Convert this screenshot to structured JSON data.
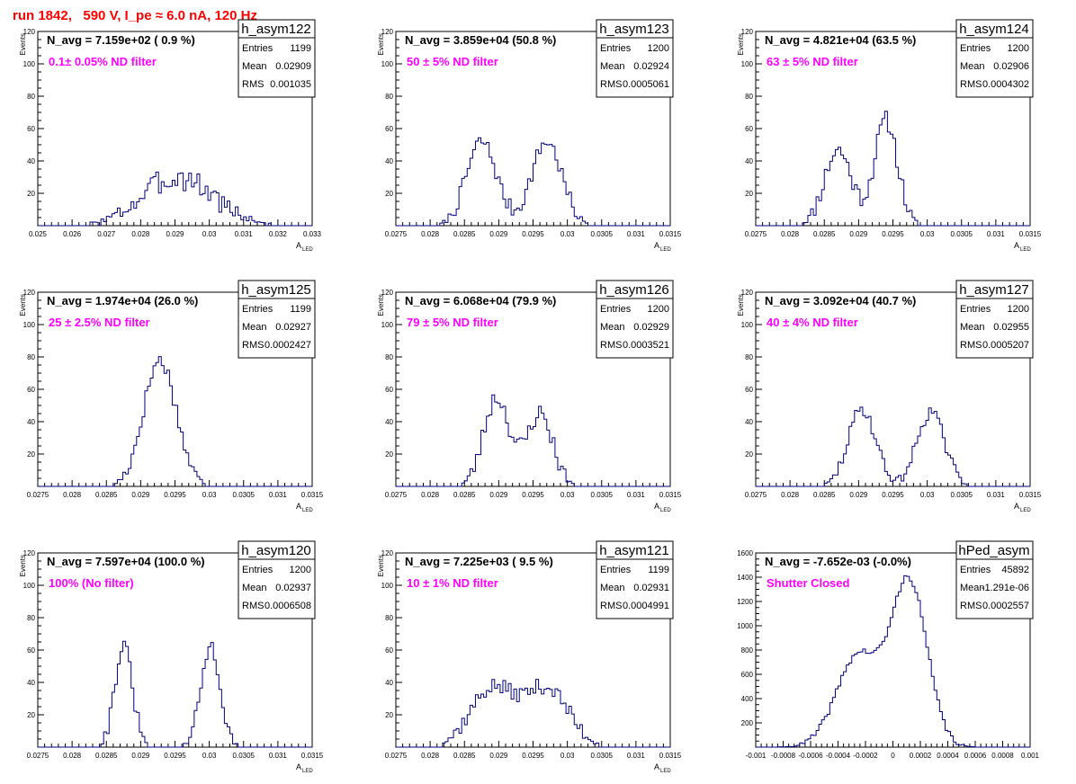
{
  "header": {
    "run_title": "run 1842,   590 V, I_pe ≈ 6.0 nA, 120 Hz",
    "title_color": "#ff0000"
  },
  "style": {
    "line_color": "#000080",
    "annotation_color": "#ff00ff"
  },
  "chart_data": [
    {
      "type": "histogram",
      "name": "h_asym122",
      "navg": "N_avg = 7.159e+02 ( 0.9 %)",
      "annotation": "0.1± 0.05% ND filter",
      "stats": {
        "entries_label": "Entries",
        "entries": "1199",
        "mean_label": "Mean",
        "mean": "0.02909",
        "rms_label": "RMS",
        "rms": "0.001035"
      },
      "xlabel_main": "A",
      "xlabel_sub": "LED",
      "ylabel": "Events",
      "xlim": [
        0.025,
        0.033
      ],
      "ylim": [
        0,
        120
      ],
      "xticks": [
        "0.025",
        "0.026",
        "0.027",
        "0.028",
        "0.029",
        "0.03",
        "0.031",
        "0.032",
        "0.033"
      ],
      "yticks": [
        "20",
        "40",
        "60",
        "80",
        "100",
        "120"
      ],
      "peaks": [
        [
          0.02909,
          0.00105,
          30
        ]
      ],
      "noise": 8,
      "seed": 3
    },
    {
      "type": "histogram",
      "name": "h_asym123",
      "navg": "N_avg = 3.859e+04 (50.8 %)",
      "annotation": "50 ± 5% ND filter",
      "stats": {
        "entries_label": "Entries",
        "entries": "1200",
        "mean_label": "Mean",
        "mean": "0.02924",
        "rms_label": "RMS",
        "rms": "0.0005061"
      },
      "xlabel_main": "A",
      "xlabel_sub": "LED",
      "ylabel": "Events",
      "xlim": [
        0.0275,
        0.0315
      ],
      "ylim": [
        0,
        120
      ],
      "xticks": [
        "0.0275",
        "0.028",
        "0.0285",
        "0.029",
        "0.0295",
        "0.03",
        "0.0305",
        "0.031",
        "0.0315"
      ],
      "yticks": [
        "20",
        "40",
        "60",
        "80",
        "100",
        "120"
      ],
      "peaks": [
        [
          0.02875,
          0.00022,
          52
        ],
        [
          0.0297,
          0.00022,
          52
        ]
      ],
      "noise": 5,
      "seed": 7
    },
    {
      "type": "histogram",
      "name": "h_asym124",
      "navg": "N_avg = 4.821e+04 (63.5 %)",
      "annotation": "63 ± 5% ND filter",
      "stats": {
        "entries_label": "Entries",
        "entries": "1200",
        "mean_label": "Mean",
        "mean": "0.02906",
        "rms_label": "RMS",
        "rms": "0.0004302"
      },
      "xlabel_main": "A",
      "xlabel_sub": "LED",
      "ylabel": "Events",
      "xlim": [
        0.0275,
        0.0315
      ],
      "ylim": [
        0,
        120
      ],
      "xticks": [
        "0.0275",
        "0.028",
        "0.0285",
        "0.029",
        "0.0295",
        "0.03",
        "0.0305",
        "0.031",
        "0.0315"
      ],
      "yticks": [
        "20",
        "40",
        "60",
        "80",
        "100",
        "120"
      ],
      "peaks": [
        [
          0.0287,
          0.0002,
          47
        ],
        [
          0.0294,
          0.00017,
          65
        ]
      ],
      "noise": 6,
      "seed": 11
    },
    {
      "type": "histogram",
      "name": "h_asym125",
      "navg": "N_avg = 1.974e+04 (26.0 %)",
      "annotation": "25 ± 2.5% ND filter",
      "stats": {
        "entries_label": "Entries",
        "entries": "1199",
        "mean_label": "Mean",
        "mean": "0.02927",
        "rms_label": "RMS",
        "rms": "0.0002427"
      },
      "xlabel_main": "A",
      "xlabel_sub": "LED",
      "ylabel": "Events",
      "xlim": [
        0.0275,
        0.0315
      ],
      "ylim": [
        0,
        120
      ],
      "xticks": [
        "0.0275",
        "0.028",
        "0.0285",
        "0.029",
        "0.0295",
        "0.03",
        "0.0305",
        "0.031",
        "0.0315"
      ],
      "yticks": [
        "20",
        "40",
        "60",
        "80",
        "100",
        "120"
      ],
      "peaks": [
        [
          0.02928,
          0.00024,
          78
        ]
      ],
      "noise": 5,
      "seed": 17
    },
    {
      "type": "histogram",
      "name": "h_asym126",
      "navg": "N_avg = 6.068e+04 (79.9 %)",
      "annotation": "79 ± 5% ND filter",
      "stats": {
        "entries_label": "Entries",
        "entries": "1200",
        "mean_label": "Mean",
        "mean": "0.02929",
        "rms_label": "RMS",
        "rms": "0.0003521"
      },
      "xlabel_main": "A",
      "xlabel_sub": "LED",
      "ylabel": "Events",
      "xlim": [
        0.0275,
        0.0315
      ],
      "ylim": [
        0,
        120
      ],
      "xticks": [
        "0.0275",
        "0.028",
        "0.0285",
        "0.029",
        "0.0295",
        "0.03",
        "0.0305",
        "0.031",
        "0.0315"
      ],
      "yticks": [
        "20",
        "40",
        "60",
        "80",
        "100",
        "120"
      ],
      "peaks": [
        [
          0.02897,
          0.00019,
          55
        ],
        [
          0.0296,
          0.00019,
          45
        ]
      ],
      "noise": 6,
      "seed": 23
    },
    {
      "type": "histogram",
      "name": "h_asym127",
      "navg": "N_avg = 3.092e+04 (40.7 %)",
      "annotation": "40 ± 4% ND filter",
      "stats": {
        "entries_label": "Entries",
        "entries": "1200",
        "mean_label": "Mean",
        "mean": "0.02955",
        "rms_label": "RMS",
        "rms": "0.0005207"
      },
      "xlabel_main": "A",
      "xlabel_sub": "LED",
      "ylabel": "Events",
      "xlim": [
        0.0275,
        0.0315
      ],
      "ylim": [
        0,
        120
      ],
      "xticks": [
        "0.0275",
        "0.028",
        "0.0285",
        "0.029",
        "0.0295",
        "0.03",
        "0.0305",
        "0.031",
        "0.0315"
      ],
      "yticks": [
        "20",
        "40",
        "60",
        "80",
        "100",
        "120"
      ],
      "peaks": [
        [
          0.02905,
          0.0002,
          48
        ],
        [
          0.03005,
          0.0002,
          46
        ]
      ],
      "noise": 4,
      "seed": 29
    },
    {
      "type": "histogram",
      "name": "h_asym120",
      "navg": "N_avg = 7.597e+04 (100.0 %)",
      "annotation": "100% (No filter)",
      "stats": {
        "entries_label": "Entries",
        "entries": "1200",
        "mean_label": "Mean",
        "mean": "0.02937",
        "rms_label": "RMS",
        "rms": "0.0006508"
      },
      "xlabel_main": "A",
      "xlabel_sub": "LED",
      "ylabel": "Events",
      "xlim": [
        0.0275,
        0.0315
      ],
      "ylim": [
        0,
        120
      ],
      "xticks": [
        "0.0275",
        "0.028",
        "0.0285",
        "0.029",
        "0.0295",
        "0.03",
        "0.0305",
        "0.031",
        "0.0315"
      ],
      "yticks": [
        "20",
        "40",
        "60",
        "80",
        "100",
        "120"
      ],
      "peaks": [
        [
          0.02875,
          0.00013,
          62
        ],
        [
          0.03002,
          0.00014,
          62
        ]
      ],
      "noise": 5,
      "seed": 31
    },
    {
      "type": "histogram",
      "name": "h_asym121",
      "navg": "N_avg = 7.225e+03 ( 9.5 %)",
      "annotation": "10 ± 1% ND filter",
      "stats": {
        "entries_label": "Entries",
        "entries": "1199",
        "mean_label": "Mean",
        "mean": "0.02931",
        "rms_label": "RMS",
        "rms": "0.0004991"
      },
      "xlabel_main": "A",
      "xlabel_sub": "LED",
      "ylabel": "Events",
      "xlim": [
        0.0275,
        0.0315
      ],
      "ylim": [
        0,
        120
      ],
      "xticks": [
        "0.0275",
        "0.028",
        "0.0285",
        "0.029",
        "0.0295",
        "0.03",
        "0.0305",
        "0.031",
        "0.0315"
      ],
      "yticks": [
        "20",
        "40",
        "60",
        "80",
        "100",
        "120"
      ],
      "peaks": [
        [
          0.0289,
          0.00032,
          36
        ],
        [
          0.0297,
          0.00032,
          36
        ]
      ],
      "noise": 5,
      "seed": 37
    },
    {
      "type": "histogram",
      "name": "hPed_asym",
      "navg": "N_avg = -7.652e-03 (-0.0%)",
      "annotation": "Shutter Closed",
      "stats": {
        "entries_label": "Entries",
        "entries": "45892",
        "mean_label": "Mean",
        "mean": "-1.291e-06",
        "rms_label": "RMS",
        "rms": "0.0002557"
      },
      "xlabel_main": "",
      "xlabel_sub": "",
      "ylabel": "",
      "xlim": [
        -0.001,
        0.001
      ],
      "ylim": [
        0,
        1600
      ],
      "xticks": [
        "-0.001",
        "-0.0008",
        "-0.0006",
        "-0.0004",
        "-0.0002",
        "0",
        "0.0002",
        "0.0004",
        "0.0006",
        "0.0008",
        "0.001"
      ],
      "yticks": [
        "200",
        "400",
        "600",
        "800",
        "1000",
        "1200",
        "1400",
        "1600"
      ],
      "peaks": [
        [
          -0.00025,
          0.00016,
          760
        ],
        [
          0.00012,
          0.00013,
          1350
        ]
      ],
      "noise": 25,
      "seed": 41
    }
  ]
}
